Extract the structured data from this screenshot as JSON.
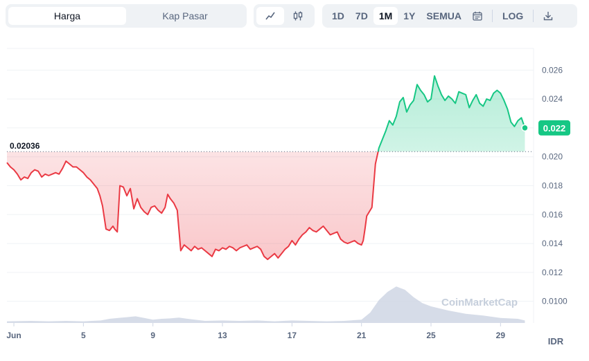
{
  "toolbar": {
    "metric_tabs": [
      "Harga",
      "Kap Pasar"
    ],
    "active_metric": "Harga",
    "chart_type_icons": [
      "line-chart-icon",
      "candlestick-icon"
    ],
    "range_tabs": [
      "1D",
      "7D",
      "1M",
      "1Y",
      "SEMUA"
    ],
    "active_range": "1M",
    "calendar_icon": "calendar-icon",
    "log_label": "LOG",
    "download_icon": "download-icon"
  },
  "colors": {
    "up": "#16c784",
    "down": "#ea3943",
    "volume": "#cfd6e4",
    "accent": "#3861fb"
  },
  "chart_data": {
    "type": "line",
    "currency": "IDR",
    "watermark": "CoinMarketCap",
    "reference_price_label": "0.02036",
    "reference_price": 0.02036,
    "current_price_label": "0.022",
    "y_tick_labels": [
      "0.026",
      "0.024",
      "0.022",
      "0.020",
      "0.018",
      "0.016",
      "0.014",
      "0.012",
      "0.0100"
    ],
    "x_tick_labels": [
      "Jun",
      "5",
      "9",
      "13",
      "17",
      "21",
      "25",
      "29"
    ],
    "x_ticks_day": [
      1,
      5,
      9,
      13,
      17,
      21,
      25,
      29
    ],
    "ylim": [
      0.0085,
      0.0275
    ],
    "xlim": [
      0.6,
      30.9
    ],
    "series": [
      {
        "x": [
          0.6,
          0.8,
          1.0,
          1.2,
          1.4,
          1.6,
          1.8,
          2.0,
          2.2,
          2.4,
          2.6,
          2.8,
          3.0,
          3.2,
          3.4,
          3.6,
          3.8,
          4.0,
          4.2,
          4.4,
          4.6,
          4.8,
          5.0,
          5.2,
          5.4,
          5.6,
          5.8,
          5.95,
          6.1,
          6.3,
          6.5,
          6.7,
          6.8,
          6.95,
          7.1,
          7.3,
          7.5,
          7.7,
          7.9,
          8.1,
          8.3,
          8.5,
          8.7,
          8.9,
          9.1,
          9.3,
          9.5,
          9.7,
          9.85,
          10.0,
          10.2,
          10.4,
          10.6,
          10.8,
          11.0,
          11.2,
          11.4,
          11.6,
          11.8,
          12.0,
          12.2,
          12.4,
          12.6,
          12.8,
          13.0,
          13.2,
          13.4,
          13.6,
          13.8,
          14.0,
          14.2,
          14.4,
          14.6,
          14.8,
          15.0,
          15.2,
          15.4,
          15.6,
          15.8,
          16.0,
          16.2,
          16.4,
          16.6,
          16.8,
          17.0,
          17.2,
          17.4,
          17.6,
          17.8,
          18.0,
          18.2,
          18.4,
          18.6,
          18.8,
          19.0,
          19.2,
          19.4,
          19.6,
          19.8,
          20.0,
          20.2,
          20.4,
          20.6,
          20.8,
          21.0,
          21.1,
          21.2,
          21.3,
          21.45,
          21.6,
          21.8,
          22.0,
          22.2,
          22.4,
          22.6,
          22.8,
          23.0,
          23.2,
          23.4,
          23.6,
          23.8,
          24.0,
          24.2,
          24.4,
          24.6,
          24.8,
          25.0,
          25.2,
          25.4,
          25.6,
          25.8,
          26.0,
          26.2,
          26.4,
          26.6,
          26.8,
          27.0,
          27.2,
          27.4,
          27.6,
          27.8,
          28.0,
          28.2,
          28.4,
          28.6,
          28.8,
          29.0,
          29.2,
          29.4,
          29.6,
          29.8,
          30.0,
          30.2,
          30.4
        ],
        "y": [
          0.0196,
          0.0193,
          0.0191,
          0.0188,
          0.0184,
          0.0186,
          0.0185,
          0.0189,
          0.0191,
          0.019,
          0.0186,
          0.0188,
          0.0187,
          0.0188,
          0.0189,
          0.0188,
          0.0192,
          0.0197,
          0.0195,
          0.0193,
          0.0193,
          0.0191,
          0.0189,
          0.0186,
          0.0184,
          0.0181,
          0.0178,
          0.0173,
          0.0166,
          0.015,
          0.0149,
          0.0152,
          0.015,
          0.0148,
          0.018,
          0.0179,
          0.0173,
          0.0178,
          0.0164,
          0.0171,
          0.0165,
          0.0162,
          0.016,
          0.0165,
          0.0166,
          0.0163,
          0.0161,
          0.0165,
          0.0174,
          0.0171,
          0.0168,
          0.0163,
          0.0135,
          0.0139,
          0.0137,
          0.0135,
          0.0138,
          0.0136,
          0.0137,
          0.0135,
          0.0133,
          0.0131,
          0.0136,
          0.0135,
          0.0137,
          0.0136,
          0.0138,
          0.0137,
          0.0135,
          0.0137,
          0.0138,
          0.0139,
          0.0136,
          0.0137,
          0.0138,
          0.0136,
          0.0131,
          0.0129,
          0.0131,
          0.0133,
          0.013,
          0.0133,
          0.0136,
          0.0138,
          0.0142,
          0.0139,
          0.0143,
          0.0146,
          0.0148,
          0.0151,
          0.0149,
          0.0148,
          0.015,
          0.0152,
          0.0149,
          0.0146,
          0.0147,
          0.0148,
          0.0143,
          0.0141,
          0.014,
          0.0141,
          0.0142,
          0.014,
          0.0139,
          0.0142,
          0.015,
          0.0159,
          0.0162,
          0.0165,
          0.0195,
          0.0206,
          0.0212,
          0.0218,
          0.0225,
          0.0222,
          0.0228,
          0.0238,
          0.0241,
          0.0231,
          0.0236,
          0.0239,
          0.025,
          0.0246,
          0.0243,
          0.0238,
          0.024,
          0.0256,
          0.0249,
          0.0243,
          0.0239,
          0.0242,
          0.024,
          0.0237,
          0.0245,
          0.0244,
          0.0243,
          0.0234,
          0.0239,
          0.0243,
          0.0237,
          0.0235,
          0.024,
          0.0239,
          0.0244,
          0.0246,
          0.0244,
          0.0239,
          0.0233,
          0.0224,
          0.0221,
          0.0225,
          0.0227,
          0.022
        ]
      }
    ],
    "volume": {
      "x": [
        0.6,
        2.0,
        3.0,
        4.0,
        5.0,
        6.0,
        6.5,
        7.0,
        7.5,
        8.0,
        8.5,
        9.0,
        9.5,
        10.0,
        10.5,
        11.0,
        12.0,
        13.0,
        14.0,
        15.0,
        16.0,
        17.0,
        18.0,
        19.0,
        20.0,
        21.0,
        21.5,
        22.0,
        22.5,
        23.0,
        23.5,
        24.0,
        24.5,
        25.0,
        26.0,
        27.0,
        28.0,
        29.0,
        30.0,
        30.4
      ],
      "v": [
        0.04,
        0.05,
        0.04,
        0.05,
        0.04,
        0.06,
        0.1,
        0.12,
        0.14,
        0.16,
        0.12,
        0.08,
        0.1,
        0.11,
        0.13,
        0.1,
        0.05,
        0.06,
        0.05,
        0.06,
        0.04,
        0.06,
        0.05,
        0.04,
        0.05,
        0.08,
        0.25,
        0.55,
        0.75,
        0.88,
        0.8,
        0.62,
        0.48,
        0.4,
        0.3,
        0.22,
        0.18,
        0.12,
        0.1,
        0.06
      ]
    }
  }
}
